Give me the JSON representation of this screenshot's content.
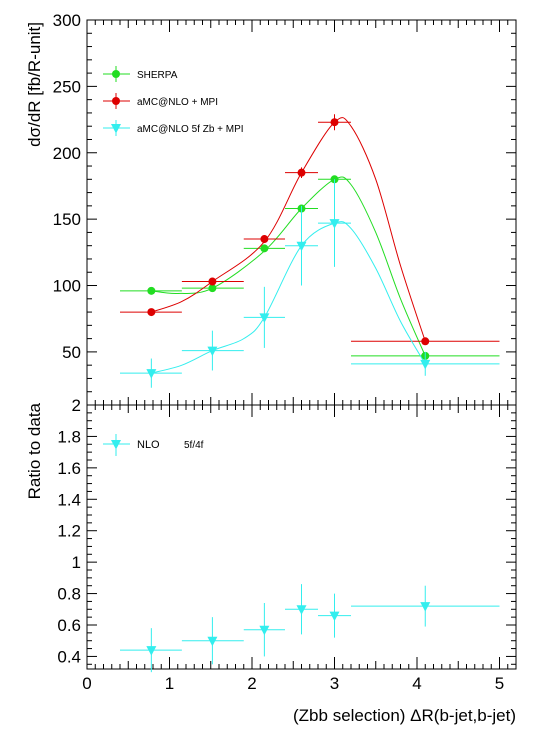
{
  "chart_data": [
    {
      "type": "scatter",
      "panel": "top",
      "ylabel": "dσ/dR [fb/R-unit]",
      "xlim": [
        0,
        5.2
      ],
      "ylim": [
        10,
        300
      ],
      "yticks": [
        50,
        100,
        150,
        200,
        250,
        300
      ],
      "legend_position": "top-left",
      "series": [
        {
          "name": "SHERPA",
          "color": "#22dd22",
          "marker": "circle",
          "points": [
            {
              "x": 0.78,
              "y": 96,
              "xlo": 0.4,
              "xhi": 1.15,
              "err": 1.5
            },
            {
              "x": 1.52,
              "y": 98,
              "xlo": 1.15,
              "xhi": 1.9,
              "err": 1.5
            },
            {
              "x": 2.15,
              "y": 128,
              "xlo": 1.9,
              "xhi": 2.4,
              "err": 2
            },
            {
              "x": 2.6,
              "y": 158,
              "xlo": 2.4,
              "xhi": 2.8,
              "err": 2
            },
            {
              "x": 3.0,
              "y": 180,
              "xlo": 2.8,
              "xhi": 3.2,
              "err": 2
            },
            {
              "x": 4.1,
              "y": 47,
              "xlo": 3.2,
              "xhi": 5.0,
              "err": 1
            }
          ],
          "curve": [
            [
              0.78,
              96
            ],
            [
              1.1,
              94
            ],
            [
              1.52,
              98
            ],
            [
              2.15,
              126
            ],
            [
              2.6,
              158
            ],
            [
              3.0,
              180
            ],
            [
              3.2,
              176
            ],
            [
              3.5,
              140
            ],
            [
              3.8,
              90
            ],
            [
              4.1,
              47
            ]
          ]
        },
        {
          "name": "aMC@NLO + MPI",
          "color": "#dd0000",
          "marker": "circle",
          "points": [
            {
              "x": 0.78,
              "y": 80,
              "xlo": 0.4,
              "xhi": 1.15,
              "err": 2
            },
            {
              "x": 1.52,
              "y": 103,
              "xlo": 1.15,
              "xhi": 1.9,
              "err": 2
            },
            {
              "x": 2.15,
              "y": 135,
              "xlo": 1.9,
              "xhi": 2.4,
              "err": 3
            },
            {
              "x": 2.6,
              "y": 185,
              "xlo": 2.4,
              "xhi": 2.8,
              "err": 4
            },
            {
              "x": 3.0,
              "y": 223,
              "xlo": 2.8,
              "xhi": 3.2,
              "err": 6
            },
            {
              "x": 4.1,
              "y": 58,
              "xlo": 3.2,
              "xhi": 5.0,
              "err": 1
            }
          ],
          "curve": [
            [
              0.78,
              80
            ],
            [
              1.15,
              88
            ],
            [
              1.52,
              103
            ],
            [
              2.15,
              133
            ],
            [
              2.6,
              185
            ],
            [
              3.0,
              223
            ],
            [
              3.2,
              220
            ],
            [
              3.5,
              180
            ],
            [
              3.8,
              115
            ],
            [
              4.1,
              58
            ]
          ]
        },
        {
          "name": "aMC@NLO 5f Zb + MPI",
          "color": "#33eeee",
          "marker": "triangle-down",
          "points": [
            {
              "x": 0.78,
              "y": 34,
              "xlo": 0.4,
              "xhi": 1.15,
              "err": 11
            },
            {
              "x": 1.52,
              "y": 51,
              "xlo": 1.15,
              "xhi": 1.9,
              "err": 15
            },
            {
              "x": 2.15,
              "y": 76,
              "xlo": 1.9,
              "xhi": 2.4,
              "err": 23
            },
            {
              "x": 2.6,
              "y": 130,
              "xlo": 2.4,
              "xhi": 2.8,
              "err": 30
            },
            {
              "x": 3.0,
              "y": 147,
              "xlo": 2.8,
              "xhi": 3.2,
              "err": 33
            },
            {
              "x": 4.1,
              "y": 41,
              "xlo": 3.2,
              "xhi": 5.0,
              "err": 9
            }
          ],
          "curve": [
            [
              0.78,
              34
            ],
            [
              1.15,
              40
            ],
            [
              1.52,
              51
            ],
            [
              1.9,
              60
            ],
            [
              2.15,
              76
            ],
            [
              2.6,
              130
            ],
            [
              3.0,
              147
            ],
            [
              3.2,
              143
            ],
            [
              3.5,
              113
            ],
            [
              3.8,
              73
            ],
            [
              4.1,
              41
            ]
          ]
        }
      ]
    },
    {
      "type": "scatter",
      "panel": "bottom",
      "ylabel": "Ratio to data",
      "xlabel": "(Zbb selection) ΔR(b-jet,b-jet)",
      "xlim": [
        0,
        5.2
      ],
      "ylim": [
        0.32,
        2.0
      ],
      "xticks": [
        0,
        1,
        2,
        3,
        4,
        5
      ],
      "yticks": [
        0.4,
        0.6,
        0.8,
        1,
        1.2,
        1.4,
        1.6,
        1.8,
        2
      ],
      "legend": {
        "name": "NLO",
        "suffix": "5f/4f"
      },
      "series": [
        {
          "name": "NLO 5f/4f",
          "color": "#33eeee",
          "marker": "triangle-down",
          "points": [
            {
              "x": 0.78,
              "y": 0.44,
              "xlo": 0.4,
              "xhi": 1.15,
              "err": 0.14
            },
            {
              "x": 1.52,
              "y": 0.5,
              "xlo": 1.15,
              "xhi": 1.9,
              "err": 0.15
            },
            {
              "x": 2.15,
              "y": 0.57,
              "xlo": 1.9,
              "xhi": 2.4,
              "err": 0.17
            },
            {
              "x": 2.6,
              "y": 0.7,
              "xlo": 2.4,
              "xhi": 2.8,
              "err": 0.16
            },
            {
              "x": 3.0,
              "y": 0.66,
              "xlo": 2.8,
              "xhi": 3.2,
              "err": 0.14
            },
            {
              "x": 4.1,
              "y": 0.72,
              "xlo": 3.2,
              "xhi": 5.0,
              "err": 0.13
            }
          ]
        }
      ]
    }
  ]
}
